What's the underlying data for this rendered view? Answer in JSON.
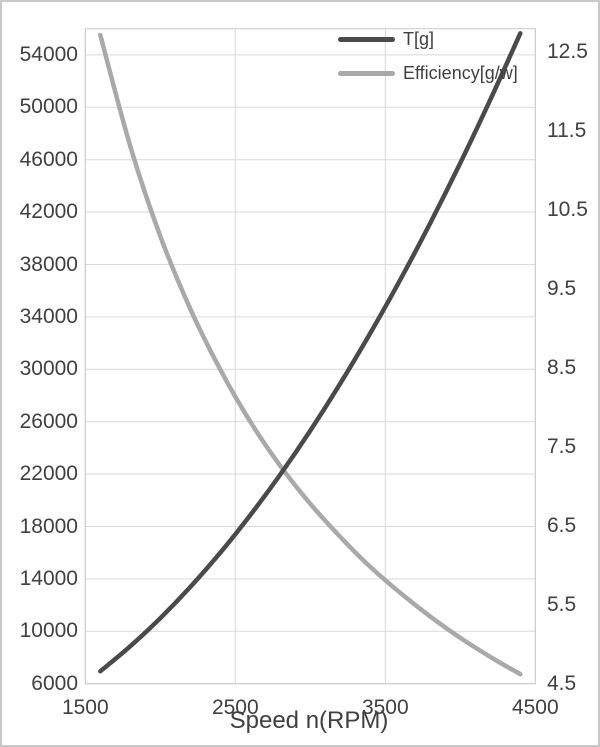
{
  "figure": {
    "background": "#ffffff",
    "border_color": "#c9c9c9",
    "text_color": "#404040"
  },
  "chart_data": {
    "type": "line",
    "title": "",
    "xlabel": "Speed n(RPM)",
    "xlim": [
      1500,
      4500
    ],
    "x_ticks": [
      "1500",
      "2500",
      "3500",
      "4500"
    ],
    "x": [
      1600,
      1800,
      2000,
      2200,
      2400,
      2600,
      2800,
      3000,
      3200,
      3400,
      3600,
      3800,
      4000,
      4200,
      4400
    ],
    "y_left": {
      "lim": [
        6000,
        56000
      ],
      "ticks": [
        "6000",
        "10000",
        "14000",
        "18000",
        "22000",
        "26000",
        "30000",
        "34000",
        "38000",
        "42000",
        "46000",
        "50000",
        "54000"
      ]
    },
    "y_right": {
      "lim": [
        4.5,
        12.8
      ],
      "ticks": [
        "4.5",
        "5.5",
        "6.5",
        "7.5",
        "8.5",
        "9.5",
        "10.5",
        "11.5",
        "12.5"
      ]
    },
    "grid": {
      "horizontal": true,
      "vertical": true,
      "color": "#d9d9d9"
    },
    "legend_position": "inside-top-right",
    "series": [
      {
        "name": "T[g]",
        "axis": "left",
        "color": "#4a4a4a",
        "values": [
          6950,
          8860,
          11000,
          13380,
          16000,
          18870,
          21970,
          25320,
          28920,
          32760,
          36840,
          41170,
          45750,
          50580,
          55650
        ]
      },
      {
        "name": "Efficiency[g/w]",
        "axis": "right",
        "color": "#a9a9a9",
        "values": [
          12.72,
          11.31,
          10.17,
          9.25,
          8.48,
          7.82,
          7.26,
          6.78,
          6.36,
          5.98,
          5.65,
          5.35,
          5.08,
          4.84,
          4.62
        ]
      }
    ]
  }
}
